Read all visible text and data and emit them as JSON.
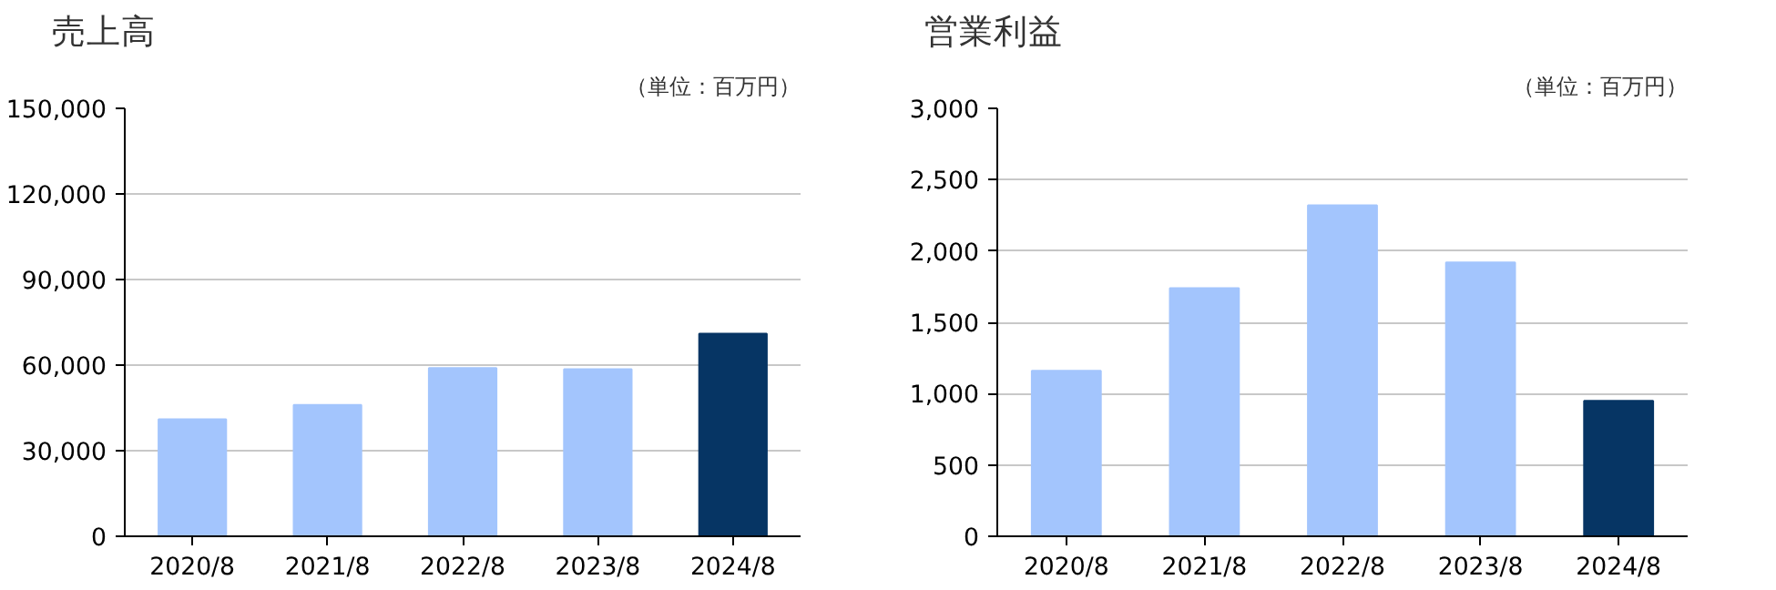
{
  "chart_data": [
    {
      "type": "bar",
      "title": "売上高",
      "annotations": [
        "（単位：百万円）"
      ],
      "categories": [
        "2020/8",
        "2021/8",
        "2022/8",
        "2023/8",
        "2024/8"
      ],
      "values": [
        41000,
        46000,
        59000,
        58600,
        71000
      ],
      "colors": [
        "#a3c5fd",
        "#a3c5fd",
        "#a3c5fd",
        "#a3c5fd",
        "#063564"
      ],
      "ylim": [
        0,
        150000
      ],
      "yticks": [
        0,
        {
          "value": 30000,
          "label": "30,000"
        },
        {
          "value": 60000,
          "label": "60,000"
        },
        {
          "value": 90000,
          "label": "90,000"
        },
        {
          "value": 120000,
          "label": "120,000"
        },
        {
          "value": 150000,
          "label": "150,000"
        }
      ],
      "grid": "y"
    },
    {
      "type": "bar",
      "title": "営業利益",
      "annotations": [
        "（単位：百万円）"
      ],
      "categories": [
        "2020/8",
        "2021/8",
        "2022/8",
        "2023/8",
        "2024/8"
      ],
      "values": [
        1160,
        1740,
        2320,
        1920,
        950
      ],
      "colors": [
        "#a3c5fd",
        "#a3c5fd",
        "#a3c5fd",
        "#a3c5fd",
        "#063564"
      ],
      "ylim": [
        0,
        3000
      ],
      "yticks": [
        0,
        500,
        {
          "value": 1000,
          "label": "1,000"
        },
        {
          "value": 1500,
          "label": "1,500"
        },
        {
          "value": 2000,
          "label": "2,000"
        },
        {
          "value": 2500,
          "label": "2,500"
        },
        {
          "value": 3000,
          "label": "3,000"
        }
      ],
      "grid": "y"
    }
  ]
}
